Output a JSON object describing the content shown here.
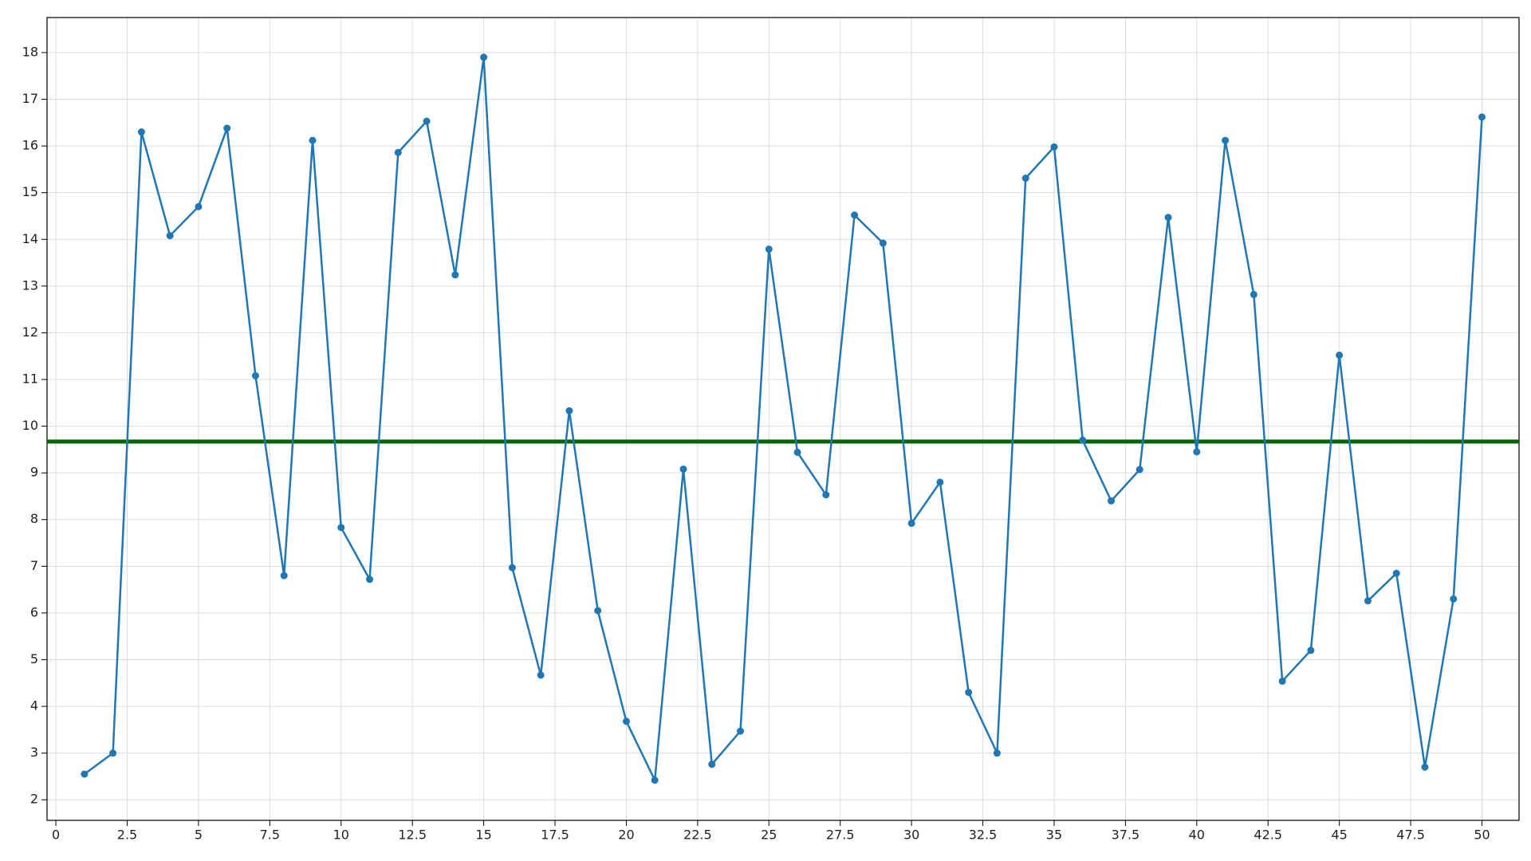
{
  "chart_data": {
    "type": "line",
    "x": [
      1,
      2,
      3,
      4,
      5,
      6,
      7,
      8,
      9,
      10,
      11,
      12,
      13,
      14,
      15,
      16,
      17,
      18,
      19,
      20,
      21,
      22,
      23,
      24,
      25,
      26,
      27,
      28,
      29,
      30,
      31,
      32,
      33,
      34,
      35,
      36,
      37,
      38,
      39,
      40,
      41,
      42,
      43,
      44,
      45,
      46,
      47,
      48,
      49,
      50
    ],
    "series": [
      {
        "color": "#1f77b4",
        "values": [
          2.55,
          3.0,
          16.3,
          14.08,
          14.7,
          16.38,
          11.08,
          6.8,
          16.12,
          7.83,
          6.72,
          15.86,
          16.53,
          13.24,
          17.9,
          6.97,
          4.67,
          10.33,
          6.05,
          3.68,
          2.42,
          9.08,
          2.76,
          3.47,
          13.79,
          9.44,
          8.53,
          14.52,
          13.92,
          7.92,
          8.8,
          4.3,
          3.0,
          15.31,
          15.98,
          9.7,
          8.4,
          9.07,
          14.47,
          9.45,
          16.12,
          12.82,
          4.54,
          5.2,
          11.52,
          6.26,
          6.85,
          2.7,
          6.3,
          16.62
        ]
      }
    ],
    "hline": {
      "value": 9.67,
      "color": "#006400"
    },
    "xlim": [
      -0.31,
      51.3
    ],
    "ylim": [
      1.56,
      18.75
    ],
    "xticks": [
      0,
      2.5,
      5,
      7.5,
      10,
      12.5,
      15,
      17.5,
      20,
      22.5,
      25,
      27.5,
      30,
      32.5,
      35,
      37.5,
      40,
      42.5,
      45,
      47.5,
      50
    ],
    "yticks": [
      2,
      3,
      4,
      5,
      6,
      7,
      8,
      9,
      10,
      11,
      12,
      13,
      14,
      15,
      16,
      17,
      18
    ],
    "grid": true
  }
}
